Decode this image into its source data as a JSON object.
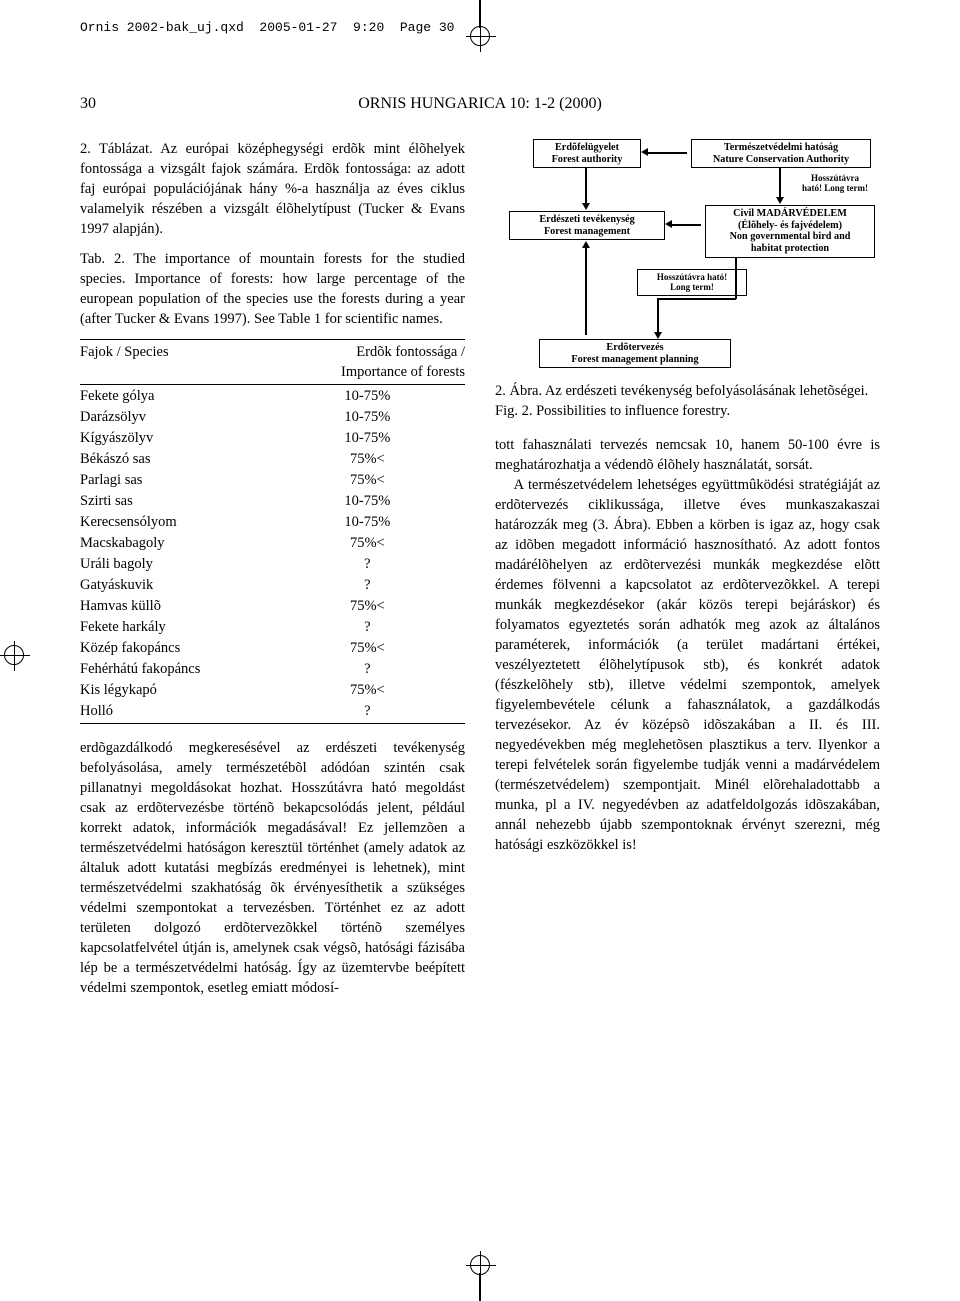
{
  "runhead": "Ornis 2002-bak_uj.qxd  2005-01-27  9:20  Page 30",
  "page_number": "30",
  "journal_title": "ORNIS HUNGARICA 10: 1-2 (2000)",
  "table2_caption": "2. Táblázat. Az európai középhegységi erdõk mint élõhelyek fontossága a vizsgált fajok számára. Erdõk fontossága: az adott faj európai populációjának hány %-a használja az éves ciklus valamelyik részében a vizsgált élõhelytípust (Tucker & Evans 1997 alapján).",
  "table2_caption_en": "Tab. 2. The importance of mountain forests for the studied species. Importance of forests: how large percentage of the european population of the species use the forests during a year (after Tucker & Evans 1997). See Table 1 for scientific names.",
  "table2": {
    "head_species": "Fajok / Species",
    "head_importance_l1": "Erdõk fontossága /",
    "head_importance_l2": "Importance of forests",
    "rows": [
      {
        "sp": "Fekete gólya",
        "v": "10-75%"
      },
      {
        "sp": "Darázsölyv",
        "v": "10-75%"
      },
      {
        "sp": "Kígyászölyv",
        "v": "10-75%"
      },
      {
        "sp": "Békászó sas",
        "v": "75%<"
      },
      {
        "sp": "Parlagi sas",
        "v": "75%<"
      },
      {
        "sp": "Szirti sas",
        "v": "10-75%"
      },
      {
        "sp": "Kerecsensólyom",
        "v": "10-75%"
      },
      {
        "sp": "Macskabagoly",
        "v": "75%<"
      },
      {
        "sp": "Uráli bagoly",
        "v": "?"
      },
      {
        "sp": "Gatyáskuvik",
        "v": "?"
      },
      {
        "sp": "Hamvas küllõ",
        "v": "75%<"
      },
      {
        "sp": "Fekete harkály",
        "v": "?"
      },
      {
        "sp": "Közép fakopáncs",
        "v": "75%<"
      },
      {
        "sp": "Fehérhátú fakopáncs",
        "v": "?"
      },
      {
        "sp": "Kis légykapó",
        "v": "75%<"
      },
      {
        "sp": "Holló",
        "v": "?"
      }
    ]
  },
  "left_text": "erdõgazdálkodó megkeresésével az erdészeti tevékenység befolyásolása, amely természetébõl adódóan szintén csak pillanatnyi megoldásokat hozhat. Hosszútávra ható megoldást csak az erdõtervezésbe történõ bekapcsolódás jelent, például korrekt adatok, információk megadásával! Ez jellemzõen a természetvédelmi hatóságon keresztül történhet (amely adatok az általuk adott kutatási megbízás eredményei is lehetnek), mint természetvédelmi szakhatóság õk érvényesíthetik a szükséges védelmi szempontokat a tervezésben. Történhet ez az adott területen dolgozó erdõtervezõkkel történõ személyes kapcsolatfelvétel útján is, amelynek csak végsõ, hatósági fázisába lép be a természetvédelmi hatóság. Így az üzemtervbe beépített védelmi szempontok, esetleg emiatt módosí-",
  "diagram": {
    "box_forest_auth_hu": "Erdõfelügyelet",
    "box_forest_auth_en": "Forest authority",
    "box_nature_auth_hu": "Természetvédelmi hatóság",
    "box_nature_auth_en": "Nature Conservation Authority",
    "longterm_note_hu": "Hosszútávra",
    "longterm_note_en": "ható! Long term!",
    "box_forest_mgmt_hu": "Erdészeti tevékenység",
    "box_forest_mgmt_en": "Forest management",
    "box_civil_l1": "Civil MADÁRVÉDELEM",
    "box_civil_l2": "(Élõhely- és fajvédelem)",
    "box_civil_l3": "Non governmental bird and",
    "box_civil_l4": "habitat protection",
    "internal_longterm_hu": "Hosszútávra ható!",
    "internal_longterm_en": "Long term!",
    "box_planning_hu": "Erdõtervezés",
    "box_planning_en": "Forest management planning"
  },
  "fig2_caption_hu": "2. Ábra. Az erdészeti tevékenység befolyásolásának lehetõségei.",
  "fig2_caption_en": "Fig. 2. Possibilities to influence forestry.",
  "right_text": "tott fahasználati tervezés nemcsak 10, hanem 50-100 évre is meghatározhatja a védendõ élõhely használatát, sorsát.\n\nA természetvédelem lehetséges együttmûködési stratégiáját az erdõtervezés ciklikussága, illetve éves munkaszakaszai határozzák meg (3. Ábra). Ebben a körben is igaz az, hogy csak az idõben megadott információ hasznosítható. Az adott fontos madárélõhelyen az erdõtervezési munkák megkezdése elõtt érdemes fölvenni a kapcsolatot az erdõtervezõkkel. A terepi munkák megkezdésekor (akár közös terepi bejáráskor) és folyamatos egyeztetés során adhatók meg azok az általános paraméterek, információk (a terület madártani értékei, veszélyeztetett élõhelytípusok stb), és konkrét adatok (fészkelõhely stb), illetve védelmi szempontok, amelyek figyelembevétele célunk a fahasználatok, a gazdálkodás tervezésekor. Az év középsõ idõszakában a II. és III. negyedévekben még meglehetõsen plasztikus a terv. Ilyenkor a terepi felvételek során figyelembe tudják venni a madárvédelem (természetvédelem) szempontjait. Minél elõrehaladottabb a munka, pl a IV. negyedévben az adatfeldolgozás idõszakában, annál nehezebb újabb szempontoknak érvényt szerezni, még hatósági eszközökkel is!"
}
